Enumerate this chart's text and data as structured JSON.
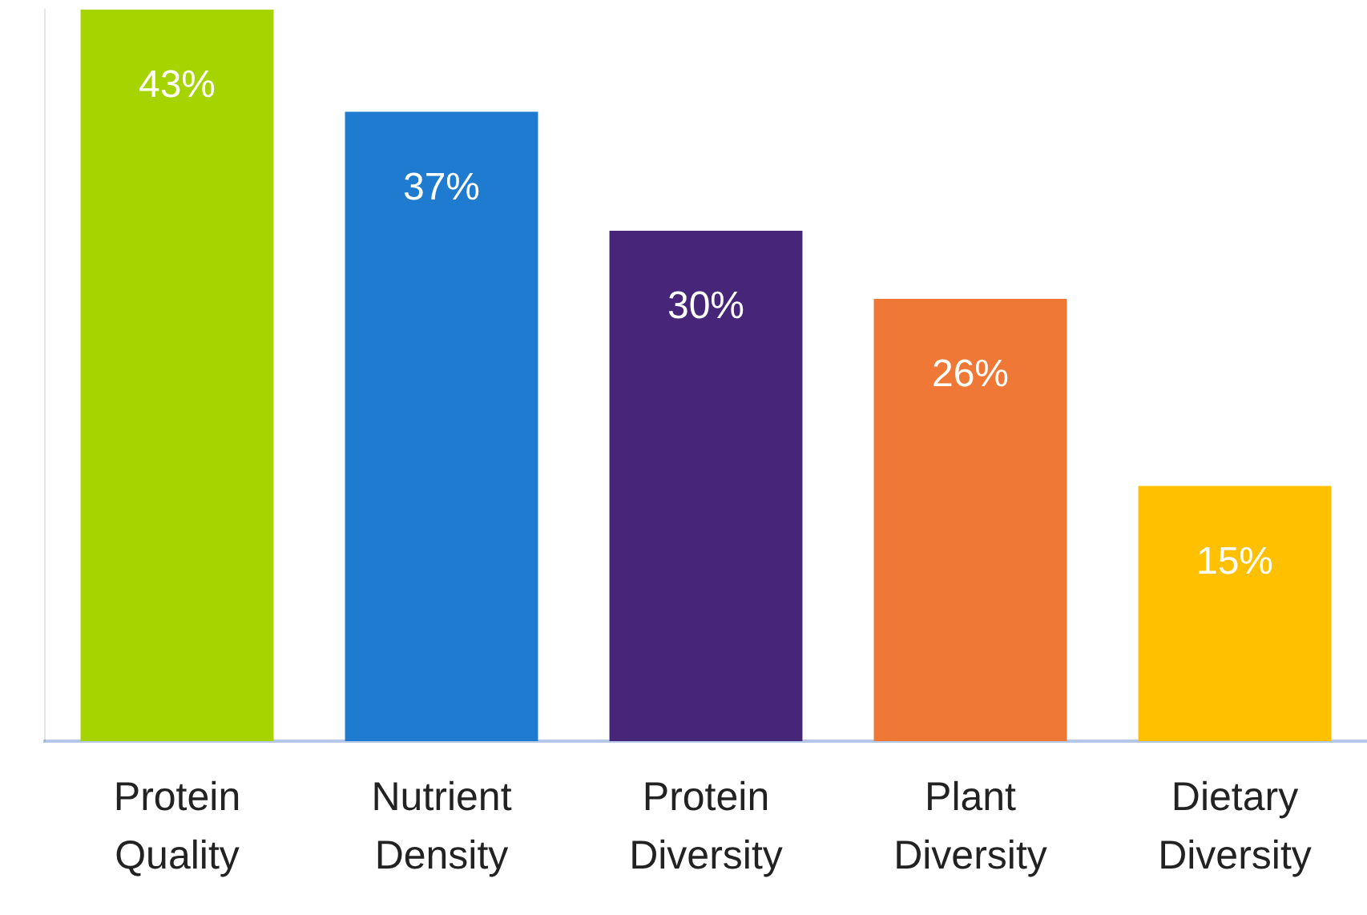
{
  "chart_data": {
    "type": "bar",
    "relative": false,
    "categories": [
      "Protein Quality",
      "Nutrient Density",
      "Protein Diversity",
      "Plant Diversity",
      "Dietary Diversity"
    ],
    "values": [
      43,
      37,
      30,
      26,
      15
    ],
    "colors": [
      "#a5d400",
      "#1f7bd0",
      "#47267a",
      "#f07836",
      "#ffc000"
    ],
    "value_labels": [
      "43%",
      "37%",
      "30%",
      "26%",
      "15%"
    ],
    "grid": false,
    "legend": false
  }
}
